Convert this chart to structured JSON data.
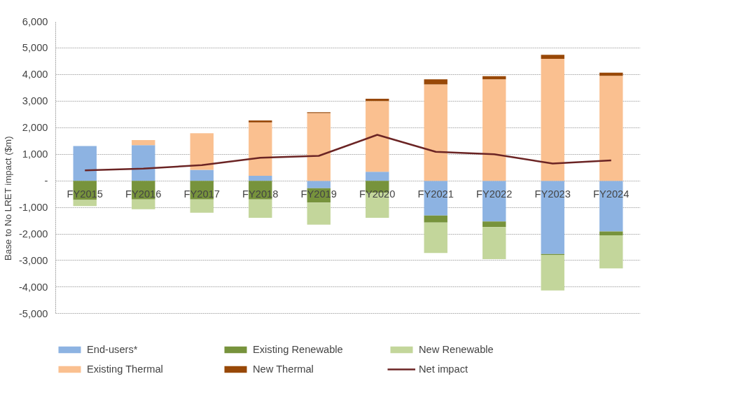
{
  "chart_data": {
    "type": "bar",
    "stacked": true,
    "ylabel": "Base to No LRET impact ($m)",
    "categories": [
      "FY2015",
      "FY2016",
      "FY2017",
      "FY2018",
      "FY2019",
      "FY2020",
      "FY2021",
      "FY2022",
      "FY2023",
      "FY2024"
    ],
    "series": [
      {
        "name": "End-users*",
        "color": "#8db3e2",
        "values": [
          1310,
          1340,
          410,
          190,
          -280,
          340,
          -1310,
          -1530,
          -2760,
          -1910
        ]
      },
      {
        "name": "Existing Thermal",
        "color": "#fac090",
        "values": [
          0,
          190,
          1380,
          2010,
          2550,
          2660,
          3630,
          3820,
          4590,
          3950
        ]
      },
      {
        "name": "Existing Renewable",
        "color": "#77933c",
        "values": [
          -720,
          -700,
          -700,
          -700,
          -540,
          -450,
          -260,
          -210,
          -30,
          -140
        ]
      },
      {
        "name": "New Thermal",
        "color": "#984807",
        "values": [
          0,
          0,
          0,
          70,
          30,
          90,
          190,
          120,
          150,
          120
        ]
      },
      {
        "name": "New Renewable",
        "color": "#c3d69b",
        "values": [
          -230,
          -370,
          -500,
          -690,
          -830,
          -940,
          -1150,
          -1210,
          -1340,
          -1250
        ]
      },
      {
        "name": "Net impact",
        "type": "line",
        "color": "#6b2424",
        "values": [
          390,
          460,
          590,
          870,
          940,
          1730,
          1090,
          1000,
          650,
          770
        ]
      }
    ],
    "ylim": [
      -5000,
      6000
    ],
    "yticks": [
      {
        "value": -5000,
        "label": "-5,000"
      },
      {
        "value": -4000,
        "label": "-4,000"
      },
      {
        "value": -3000,
        "label": "-3,000"
      },
      {
        "value": -2000,
        "label": "-2,000"
      },
      {
        "value": -1000,
        "label": "-1,000"
      },
      {
        "value": 0,
        "label": "-"
      },
      {
        "value": 1000,
        "label": "1,000"
      },
      {
        "value": 2000,
        "label": "2,000"
      },
      {
        "value": 3000,
        "label": "3,000"
      },
      {
        "value": 4000,
        "label": "4,000"
      },
      {
        "value": 5000,
        "label": "5,000"
      },
      {
        "value": 6000,
        "label": "6,000"
      }
    ],
    "grid": "y",
    "legend": "bottom",
    "marker": "none",
    "line_style": "solid"
  }
}
